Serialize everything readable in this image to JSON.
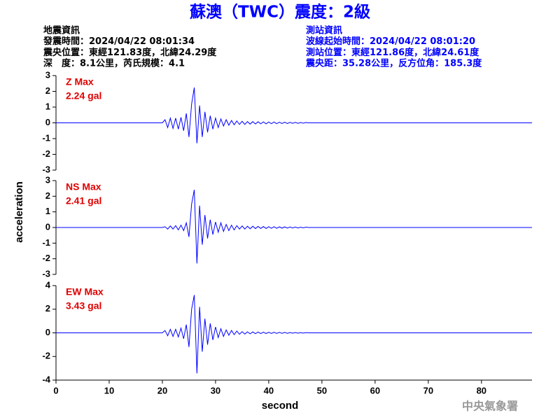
{
  "title": "蘇澳（TWC）震度：2級",
  "header_left": [
    "地震資訊",
    "發震時間：2024/04/22 08:01:34",
    "震央位置：東經121.83度，北緯24.29度",
    "深　度：8.1公里，芮氏規模：4.1"
  ],
  "header_right": [
    "測站資訊",
    "波線起始時間：2024/04/22 08:01:20",
    "測站位置：東經121.86度，北緯24.61度",
    "震央距：35.28公里，反方位角：185.3度"
  ],
  "ylabel": "acceleration",
  "footer": "中央氣象署",
  "chart_data": [
    {
      "type": "line",
      "label": "Z Max",
      "max_label": "2.24 gal",
      "color": "#0000ff",
      "x": [
        0,
        20,
        20.5,
        21,
        21.5,
        22,
        22.5,
        23,
        23.5,
        24,
        24.5,
        25,
        25.5,
        26,
        26.5,
        27,
        27.5,
        28,
        28.5,
        29,
        29.5,
        30,
        30.5,
        31,
        31.5,
        32,
        32.5,
        33,
        33.5,
        34,
        34.5,
        35,
        35.5,
        36,
        36.5,
        37,
        37.5,
        38,
        38.5,
        39,
        39.5,
        40,
        40.5,
        41,
        41.5,
        42,
        42.5,
        43,
        43.5,
        44,
        44.5,
        45,
        45.5,
        46,
        46.5,
        47,
        47.5,
        48,
        48.5,
        49,
        49.5,
        50,
        89.5
      ],
      "values": [
        0,
        0,
        0.2,
        -0.3,
        0.3,
        -0.35,
        0.3,
        -0.4,
        0.35,
        -0.5,
        0.6,
        -0.9,
        1.2,
        2.24,
        -1.3,
        1.1,
        -0.9,
        0.7,
        -0.6,
        0.45,
        -0.4,
        0.3,
        -0.3,
        0.25,
        -0.2,
        0.2,
        -0.15,
        0.15,
        -0.12,
        0.12,
        -0.1,
        0.1,
        -0.1,
        0.08,
        -0.08,
        0.08,
        -0.07,
        0.07,
        -0.06,
        0.06,
        -0.06,
        0.05,
        -0.05,
        0.05,
        -0.05,
        0.04,
        -0.04,
        0.04,
        -0.04,
        0.03,
        -0.03,
        0.03,
        -0.03,
        0.02,
        -0.02,
        0.02,
        0,
        0,
        0,
        0,
        0,
        0,
        0
      ],
      "xlim": [
        0,
        89.5
      ],
      "ylim": [
        -3,
        3
      ],
      "yticks": [
        3,
        2,
        1,
        0,
        -1,
        -2,
        -3
      ]
    },
    {
      "type": "line",
      "label": "NS Max",
      "max_label": "2.41 gal",
      "color": "#0000ff",
      "x": [
        0,
        20,
        20.5,
        21,
        21.5,
        22,
        22.5,
        23,
        23.5,
        24,
        24.5,
        25,
        25.5,
        26,
        26.5,
        27,
        27.5,
        28,
        28.5,
        29,
        29.5,
        30,
        30.5,
        31,
        31.5,
        32,
        32.5,
        33,
        33.5,
        34,
        34.5,
        35,
        35.5,
        36,
        36.5,
        37,
        37.5,
        38,
        38.5,
        39,
        39.5,
        40,
        40.5,
        41,
        41.5,
        42,
        42.5,
        43,
        43.5,
        44,
        44.5,
        45,
        45.5,
        46,
        46.5,
        47,
        47.5,
        48,
        48.5,
        49,
        49.5,
        50,
        89.5
      ],
      "values": [
        0,
        0,
        0.05,
        -0.1,
        0.1,
        -0.1,
        0.12,
        -0.15,
        0.15,
        -0.2,
        0.3,
        -0.6,
        1.5,
        2.41,
        -2.3,
        1.4,
        -1.1,
        0.8,
        -0.7,
        0.5,
        -0.45,
        0.35,
        -0.3,
        0.3,
        -0.25,
        0.2,
        -0.2,
        0.15,
        -0.15,
        0.12,
        -0.1,
        0.1,
        -0.1,
        0.08,
        -0.08,
        0.08,
        -0.07,
        0.07,
        -0.06,
        0.06,
        -0.06,
        0.05,
        -0.05,
        0.05,
        -0.05,
        0.04,
        -0.04,
        0.04,
        -0.04,
        0.03,
        -0.03,
        0.03,
        -0.03,
        0.02,
        -0.02,
        0.02,
        0,
        0,
        0,
        0,
        0,
        0,
        0
      ],
      "xlim": [
        0,
        89.5
      ],
      "ylim": [
        -3,
        3
      ],
      "yticks": [
        3,
        2,
        1,
        0,
        -1,
        -2,
        -3
      ]
    },
    {
      "type": "line",
      "label": "EW Max",
      "max_label": "3.43 gal",
      "color": "#0000ff",
      "x": [
        0,
        20,
        20.5,
        21,
        21.5,
        22,
        22.5,
        23,
        23.5,
        24,
        24.5,
        25,
        25.5,
        26,
        26.5,
        27,
        27.5,
        28,
        28.5,
        29,
        29.5,
        30,
        30.5,
        31,
        31.5,
        32,
        32.5,
        33,
        33.5,
        34,
        34.5,
        35,
        35.5,
        36,
        36.5,
        37,
        37.5,
        38,
        38.5,
        39,
        39.5,
        40,
        40.5,
        41,
        41.5,
        42,
        42.5,
        43,
        43.5,
        44,
        44.5,
        45,
        45.5,
        46,
        46.5,
        47,
        47.5,
        48,
        48.5,
        49,
        49.5,
        50,
        89.5
      ],
      "values": [
        0,
        0,
        0.2,
        -0.25,
        0.3,
        -0.3,
        0.3,
        -0.35,
        0.4,
        -0.5,
        0.7,
        -1.2,
        2.0,
        3.2,
        -3.43,
        2.2,
        -1.6,
        1.2,
        -1.0,
        0.8,
        -0.6,
        0.5,
        -0.4,
        0.35,
        -0.3,
        0.25,
        -0.2,
        0.2,
        -0.15,
        0.15,
        -0.12,
        0.1,
        -0.1,
        0.08,
        -0.08,
        0.08,
        -0.07,
        0.07,
        -0.06,
        0.06,
        -0.06,
        0.05,
        -0.05,
        0.05,
        -0.05,
        0.04,
        -0.04,
        0.04,
        -0.04,
        0.03,
        -0.03,
        0.03,
        -0.03,
        0.02,
        -0.02,
        0.02,
        0,
        0,
        0,
        0,
        0,
        0,
        0
      ],
      "xlim": [
        0,
        89.5
      ],
      "ylim": [
        -4,
        4
      ],
      "yticks": [
        4,
        2,
        0,
        -2,
        -4
      ],
      "xticks": [
        0,
        10,
        20,
        30,
        40,
        50,
        60,
        70,
        80
      ],
      "xlabel": "second"
    }
  ]
}
